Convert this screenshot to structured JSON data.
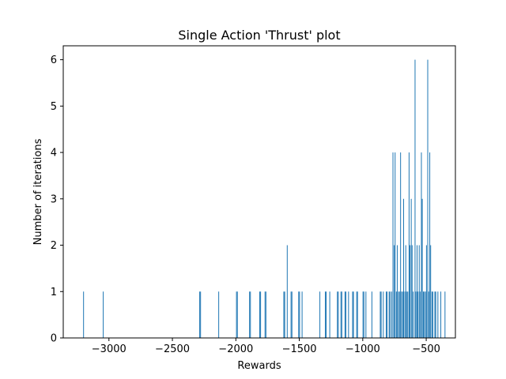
{
  "chart_data": {
    "type": "bar",
    "title": "Single Action 'Thrust' plot",
    "xlabel": "Rewards",
    "ylabel": "Number of iterations",
    "xlim": [
      -3360,
      -270
    ],
    "ylim": [
      0,
      6.3
    ],
    "xticks": [
      -3000,
      -2500,
      -2000,
      -1500,
      -1000,
      -500
    ],
    "xtick_labels": [
      "−3000",
      "−2500",
      "−2000",
      "−1500",
      "−1000",
      "−500"
    ],
    "yticks": [
      0,
      1,
      2,
      3,
      4,
      5,
      6
    ],
    "ytick_labels": [
      "0",
      "1",
      "2",
      "3",
      "4",
      "5",
      "6"
    ],
    "grid": false,
    "bar_color": "#1f77b4",
    "bins": [
      {
        "x": -3200,
        "count": 1
      },
      {
        "x": -3045,
        "count": 1
      },
      {
        "x": -2285,
        "count": 1
      },
      {
        "x": -2278,
        "count": 1
      },
      {
        "x": -2135,
        "count": 1
      },
      {
        "x": -1995,
        "count": 1
      },
      {
        "x": -1988,
        "count": 1
      },
      {
        "x": -1892,
        "count": 1
      },
      {
        "x": -1885,
        "count": 1
      },
      {
        "x": -1812,
        "count": 1
      },
      {
        "x": -1805,
        "count": 1
      },
      {
        "x": -1770,
        "count": 1
      },
      {
        "x": -1763,
        "count": 1
      },
      {
        "x": -1622,
        "count": 1
      },
      {
        "x": -1615,
        "count": 1
      },
      {
        "x": -1595,
        "count": 2
      },
      {
        "x": -1565,
        "count": 1
      },
      {
        "x": -1558,
        "count": 1
      },
      {
        "x": -1505,
        "count": 1
      },
      {
        "x": -1498,
        "count": 1
      },
      {
        "x": -1478,
        "count": 1
      },
      {
        "x": -1338,
        "count": 1
      },
      {
        "x": -1295,
        "count": 1
      },
      {
        "x": -1288,
        "count": 1
      },
      {
        "x": -1260,
        "count": 1
      },
      {
        "x": -1200,
        "count": 1
      },
      {
        "x": -1193,
        "count": 1
      },
      {
        "x": -1172,
        "count": 1
      },
      {
        "x": -1165,
        "count": 1
      },
      {
        "x": -1140,
        "count": 1
      },
      {
        "x": -1133,
        "count": 1
      },
      {
        "x": -1112,
        "count": 1
      },
      {
        "x": -1080,
        "count": 1
      },
      {
        "x": -1073,
        "count": 1
      },
      {
        "x": -1048,
        "count": 1
      },
      {
        "x": -1041,
        "count": 1
      },
      {
        "x": -998,
        "count": 1
      },
      {
        "x": -991,
        "count": 1
      },
      {
        "x": -975,
        "count": 1
      },
      {
        "x": -928,
        "count": 1
      },
      {
        "x": -862,
        "count": 1
      },
      {
        "x": -855,
        "count": 1
      },
      {
        "x": -838,
        "count": 1
      },
      {
        "x": -815,
        "count": 1
      },
      {
        "x": -808,
        "count": 1
      },
      {
        "x": -792,
        "count": 1
      },
      {
        "x": -785,
        "count": 1
      },
      {
        "x": -772,
        "count": 1
      },
      {
        "x": -762,
        "count": 4
      },
      {
        "x": -752,
        "count": 2
      },
      {
        "x": -745,
        "count": 4
      },
      {
        "x": -735,
        "count": 1
      },
      {
        "x": -728,
        "count": 2
      },
      {
        "x": -718,
        "count": 1
      },
      {
        "x": -711,
        "count": 1
      },
      {
        "x": -702,
        "count": 4
      },
      {
        "x": -695,
        "count": 1
      },
      {
        "x": -685,
        "count": 1
      },
      {
        "x": -678,
        "count": 3
      },
      {
        "x": -668,
        "count": 1
      },
      {
        "x": -661,
        "count": 2
      },
      {
        "x": -652,
        "count": 1
      },
      {
        "x": -645,
        "count": 1
      },
      {
        "x": -635,
        "count": 4
      },
      {
        "x": -628,
        "count": 2
      },
      {
        "x": -618,
        "count": 3
      },
      {
        "x": -611,
        "count": 2
      },
      {
        "x": -602,
        "count": 1
      },
      {
        "x": -588,
        "count": 6
      },
      {
        "x": -581,
        "count": 1
      },
      {
        "x": -572,
        "count": 2
      },
      {
        "x": -565,
        "count": 1
      },
      {
        "x": -555,
        "count": 2
      },
      {
        "x": -548,
        "count": 1
      },
      {
        "x": -538,
        "count": 4
      },
      {
        "x": -531,
        "count": 3
      },
      {
        "x": -522,
        "count": 1
      },
      {
        "x": -515,
        "count": 1
      },
      {
        "x": -505,
        "count": 1
      },
      {
        "x": -498,
        "count": 2
      },
      {
        "x": -488,
        "count": 6
      },
      {
        "x": -481,
        "count": 1
      },
      {
        "x": -472,
        "count": 4
      },
      {
        "x": -465,
        "count": 2
      },
      {
        "x": -455,
        "count": 1
      },
      {
        "x": -448,
        "count": 1
      },
      {
        "x": -432,
        "count": 1
      },
      {
        "x": -425,
        "count": 1
      },
      {
        "x": -408,
        "count": 1
      },
      {
        "x": -385,
        "count": 1
      },
      {
        "x": -352,
        "count": 1
      }
    ],
    "bar_width": 6
  }
}
